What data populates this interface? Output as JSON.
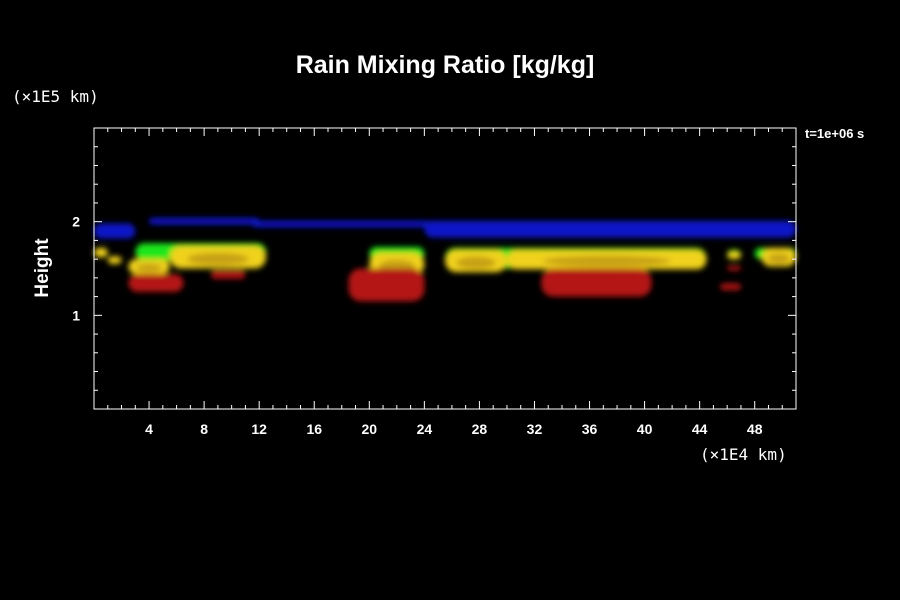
{
  "chart_data": {
    "type": "heatmap",
    "title": "Rain Mixing Ratio [kg/kg]",
    "ylabel": "Height",
    "xlabel": "",
    "x_unit_label": "(×1E4 km)",
    "y_unit_label": "(×1E5 km)",
    "time_label": "t=1e+06 s",
    "xlim": [
      0,
      51
    ],
    "ylim": [
      0,
      3
    ],
    "x_ticks": [
      {
        "value": 4,
        "label": "4"
      },
      {
        "value": 8,
        "label": "8"
      },
      {
        "value": 12,
        "label": "12"
      },
      {
        "value": 16,
        "label": "16"
      },
      {
        "value": 20,
        "label": "20"
      },
      {
        "value": 24,
        "label": "24"
      },
      {
        "value": 28,
        "label": "28"
      },
      {
        "value": 32,
        "label": "32"
      },
      {
        "value": 36,
        "label": "36"
      },
      {
        "value": 40,
        "label": "40"
      },
      {
        "value": 44,
        "label": "44"
      },
      {
        "value": 48,
        "label": "48"
      }
    ],
    "y_ticks": [
      {
        "value": 1,
        "label": "1"
      },
      {
        "value": 2,
        "label": "2"
      }
    ],
    "colors": {
      "background": "#000000",
      "blue": "#0a14c8",
      "green": "#1ee61e",
      "yellow": "#f0d21e",
      "olive": "#b48c14",
      "red": "#b41414"
    },
    "regions": [
      {
        "color": "blue",
        "x_start": 0.0,
        "x_end": 3.0,
        "y_low": 1.82,
        "y_high": 1.98
      },
      {
        "color": "blue",
        "x_start": 4.0,
        "x_end": 12.0,
        "y_low": 1.97,
        "y_high": 2.04
      },
      {
        "color": "blue",
        "x_start": 11.5,
        "x_end": 24.5,
        "y_low": 1.94,
        "y_high": 2.01
      },
      {
        "color": "blue",
        "x_start": 24.0,
        "x_end": 51.0,
        "y_low": 1.83,
        "y_high": 2.01
      },
      {
        "color": "green",
        "x_start": 3.0,
        "x_end": 12.5,
        "y_low": 1.58,
        "y_high": 1.77
      },
      {
        "color": "green",
        "x_start": 20.0,
        "x_end": 24.0,
        "y_low": 1.58,
        "y_high": 1.73
      },
      {
        "color": "green",
        "x_start": 25.5,
        "x_end": 44.5,
        "y_low": 1.5,
        "y_high": 1.72
      },
      {
        "color": "green",
        "x_start": 46.0,
        "x_end": 47.0,
        "y_low": 1.6,
        "y_high": 1.7
      },
      {
        "color": "green",
        "x_start": 48.0,
        "x_end": 51.0,
        "y_low": 1.6,
        "y_high": 1.72
      },
      {
        "color": "yellow",
        "x_start": 0.0,
        "x_end": 1.0,
        "y_low": 1.62,
        "y_high": 1.72
      },
      {
        "color": "yellow",
        "x_start": 1.0,
        "x_end": 2.0,
        "y_low": 1.55,
        "y_high": 1.63
      },
      {
        "color": "yellow",
        "x_start": 2.5,
        "x_end": 5.5,
        "y_low": 1.44,
        "y_high": 1.6
      },
      {
        "color": "yellow",
        "x_start": 5.5,
        "x_end": 12.5,
        "y_low": 1.5,
        "y_high": 1.74
      },
      {
        "color": "yellow",
        "x_start": 20.0,
        "x_end": 24.0,
        "y_low": 1.42,
        "y_high": 1.67
      },
      {
        "color": "yellow",
        "x_start": 25.5,
        "x_end": 30.0,
        "y_low": 1.46,
        "y_high": 1.7
      },
      {
        "color": "yellow",
        "x_start": 30.0,
        "x_end": 44.5,
        "y_low": 1.49,
        "y_high": 1.7
      },
      {
        "color": "yellow",
        "x_start": 46.0,
        "x_end": 47.0,
        "y_low": 1.6,
        "y_high": 1.68
      },
      {
        "color": "yellow",
        "x_start": 48.5,
        "x_end": 51.0,
        "y_low": 1.52,
        "y_high": 1.72
      },
      {
        "color": "red",
        "x_start": 2.5,
        "x_end": 6.5,
        "y_low": 1.25,
        "y_high": 1.44
      },
      {
        "color": "red",
        "x_start": 8.5,
        "x_end": 11.0,
        "y_low": 1.39,
        "y_high": 1.48
      },
      {
        "color": "red",
        "x_start": 18.5,
        "x_end": 24.0,
        "y_low": 1.15,
        "y_high": 1.5
      },
      {
        "color": "red",
        "x_start": 32.5,
        "x_end": 40.5,
        "y_low": 1.2,
        "y_high": 1.5
      },
      {
        "color": "red",
        "x_start": 45.5,
        "x_end": 47.0,
        "y_low": 1.27,
        "y_high": 1.34
      },
      {
        "color": "red",
        "x_start": 46.0,
        "x_end": 47.0,
        "y_low": 1.48,
        "y_high": 1.53
      }
    ]
  }
}
